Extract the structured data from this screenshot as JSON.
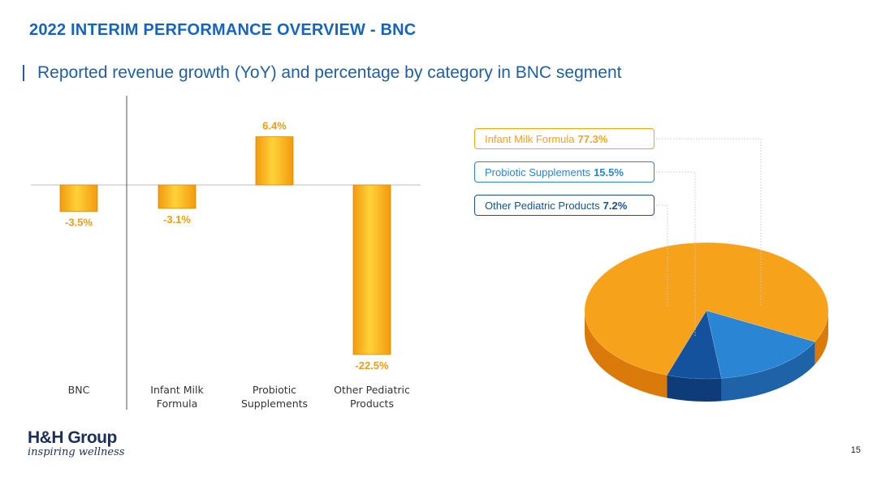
{
  "slide": {
    "title": "2022 INTERIM PERFORMANCE OVERVIEW - BNC",
    "subtitle": "Reported revenue growth (YoY) and percentage by category in BNC segment",
    "page_number": "15"
  },
  "logo": {
    "name": "H&H Group",
    "tagline": "inspiring wellness"
  },
  "colors": {
    "title": "#1565c0",
    "bar": "#fbbf24",
    "orange": "#f7a21b",
    "blue": "#2a86d4",
    "dark_blue": "#15529e"
  },
  "chart_data": [
    {
      "type": "bar",
      "title": "Reported revenue growth (YoY)",
      "categories": [
        "BNC",
        "Infant Milk Formula",
        "Probiotic Supplements",
        "Other Pediatric Products"
      ],
      "category_lines": [
        [
          "BNC"
        ],
        [
          "Infant Milk",
          "Formula"
        ],
        [
          "Probiotic",
          "Supplements"
        ],
        [
          "Other Pediatric",
          "Products"
        ]
      ],
      "values": [
        -3.5,
        -3.1,
        6.4,
        -22.5
      ],
      "value_labels": [
        "-3.5%",
        "-3.1%",
        "6.4%",
        "-22.5%"
      ],
      "unit": "%",
      "ylim": [
        -22.5,
        6.4
      ]
    },
    {
      "type": "pie",
      "title": "Percentage by category in BNC segment",
      "labels": [
        "Infant Milk Formula",
        "Probiotic Supplements",
        "Other Pediatric Products"
      ],
      "values": [
        77.3,
        15.5,
        7.2
      ],
      "value_labels": [
        "77.3%",
        "15.5%",
        "7.2%"
      ]
    }
  ]
}
